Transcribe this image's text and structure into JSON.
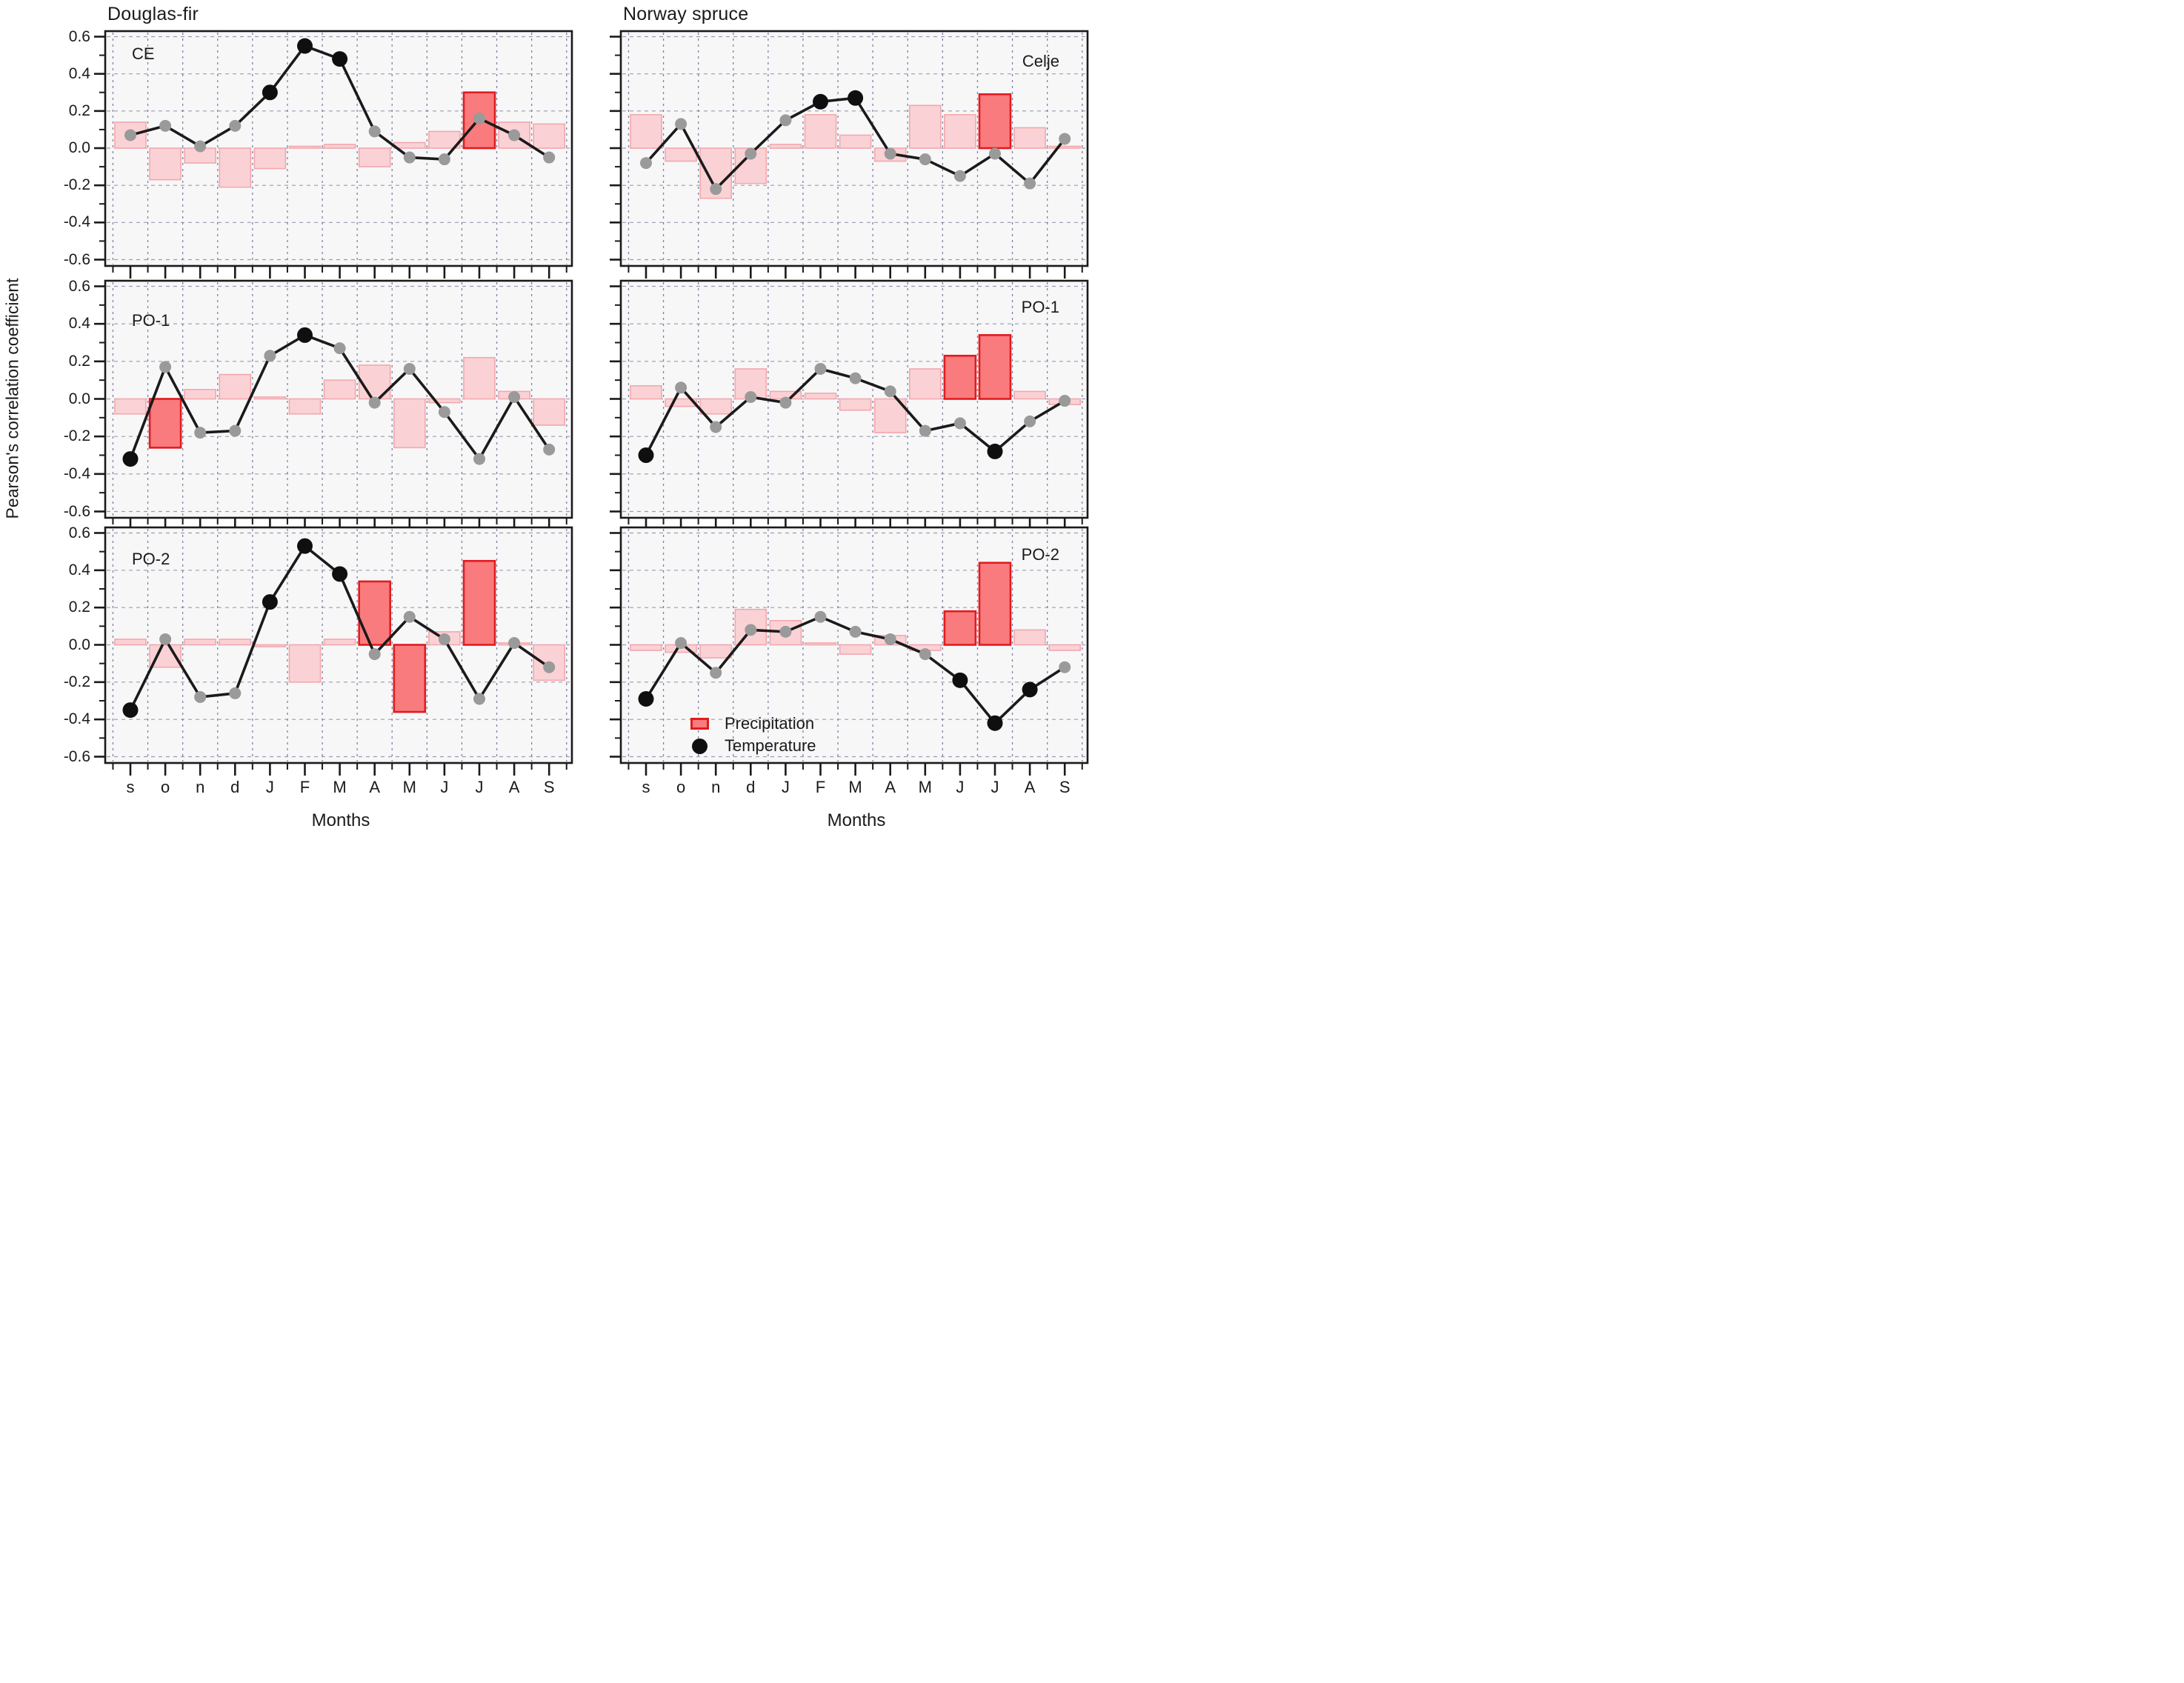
{
  "titles": {
    "left_column": "Douglas-fir",
    "right_column": "Norway spruce"
  },
  "legend": {
    "precipitation_label": "Precipitation",
    "temperature_label": "Temperature"
  },
  "colors": {
    "bar_fill": "#fad2d5",
    "bar_stroke": "#f3a8ad",
    "bar_significant_fill": "#f97b7d",
    "bar_significant_stroke": "#e11b1f",
    "dot_nonsignificant": "#9a9a9a",
    "dot_significant": "#0f0f0f",
    "line": "#1a1a1a",
    "grid_horizontal": "#9b9bb4",
    "grid_vertical": "#8181a0",
    "panel_background": "#f7f7f8",
    "panel_border": "#1a1a1a",
    "text": "#1a1a1a"
  },
  "chart_data": {
    "type": "bar",
    "subtype": "small-multiples bar + line (monthly climate-growth correlations)",
    "ylabel": "Pearson's correlation coefficient",
    "xlabel": "Months",
    "months": [
      "s",
      "o",
      "n",
      "d",
      "J",
      "F",
      "M",
      "A",
      "M",
      "J",
      "J",
      "A",
      "S"
    ],
    "ylim": [
      -0.65,
      0.65
    ],
    "yticks": [
      0.6,
      0.4,
      0.2,
      0.0,
      -0.2,
      -0.4,
      -0.6
    ],
    "ytick_labels": [
      "0.6",
      "0.4",
      "0.2",
      "0.0",
      "-0.2",
      "-0.4",
      "-0.6"
    ],
    "grid": "dashed, at 0.2 intervals and month boundaries",
    "legend_position": "inside bottom-right panel",
    "series_legend": [
      {
        "name": "Precipitation",
        "type": "bar"
      },
      {
        "name": "Temperature",
        "type": "line"
      }
    ],
    "significance_encoding": "saturated red bars / black dots are significant; pale pink bars / gray dots are not",
    "panels": [
      {
        "species": "Douglas-fir",
        "site": "CE",
        "site_label_corner": "left",
        "col": 0,
        "row": 0,
        "precipitation": [
          0.14,
          -0.17,
          -0.08,
          -0.21,
          -0.11,
          0.01,
          0.02,
          -0.1,
          0.03,
          0.09,
          0.3,
          0.14,
          0.13
        ],
        "precipitation_significant": [
          false,
          false,
          false,
          false,
          false,
          false,
          false,
          false,
          false,
          false,
          true,
          false,
          false
        ],
        "temperature": [
          0.07,
          0.12,
          0.01,
          0.12,
          0.3,
          0.55,
          0.48,
          0.09,
          -0.05,
          -0.06,
          0.16,
          0.07,
          -0.05
        ],
        "temperature_significant": [
          false,
          false,
          false,
          false,
          true,
          true,
          true,
          false,
          false,
          false,
          false,
          false,
          false
        ]
      },
      {
        "species": "Norway spruce",
        "site": "Celje",
        "site_label_corner": "right",
        "col": 1,
        "row": 0,
        "precipitation": [
          0.18,
          -0.07,
          -0.27,
          -0.19,
          0.02,
          0.18,
          0.07,
          -0.07,
          0.23,
          0.18,
          0.29,
          0.11,
          0.01
        ],
        "precipitation_significant": [
          false,
          false,
          false,
          false,
          false,
          false,
          false,
          false,
          false,
          false,
          true,
          false,
          false
        ],
        "temperature": [
          -0.08,
          0.13,
          -0.22,
          -0.03,
          0.15,
          0.25,
          0.27,
          -0.03,
          -0.06,
          -0.15,
          -0.03,
          -0.19,
          0.05
        ],
        "temperature_significant": [
          false,
          false,
          false,
          false,
          false,
          true,
          true,
          false,
          false,
          false,
          false,
          false,
          false
        ]
      },
      {
        "species": "Douglas-fir",
        "site": "PO-1",
        "site_label_corner": "left",
        "col": 0,
        "row": 1,
        "precipitation": [
          -0.08,
          -0.26,
          0.05,
          0.13,
          0.01,
          -0.08,
          0.1,
          0.18,
          -0.26,
          -0.02,
          0.22,
          0.04,
          -0.14
        ],
        "precipitation_significant": [
          false,
          true,
          false,
          false,
          false,
          false,
          false,
          false,
          false,
          false,
          false,
          false,
          false
        ],
        "temperature": [
          -0.32,
          0.17,
          -0.18,
          -0.17,
          0.23,
          0.34,
          0.27,
          -0.02,
          0.16,
          -0.07,
          -0.32,
          0.01,
          -0.27
        ],
        "temperature_significant": [
          true,
          false,
          false,
          false,
          false,
          true,
          false,
          false,
          false,
          false,
          false,
          false,
          false
        ]
      },
      {
        "species": "Norway spruce",
        "site": "PO-1",
        "site_label_corner": "right",
        "col": 1,
        "row": 1,
        "precipitation": [
          0.07,
          -0.04,
          -0.08,
          0.16,
          0.04,
          0.03,
          -0.06,
          -0.18,
          0.16,
          0.23,
          0.34,
          0.04,
          -0.03
        ],
        "precipitation_significant": [
          false,
          false,
          false,
          false,
          false,
          false,
          false,
          false,
          false,
          true,
          true,
          false,
          false
        ],
        "temperature": [
          -0.3,
          0.06,
          -0.15,
          0.01,
          -0.02,
          0.16,
          0.11,
          0.04,
          -0.17,
          -0.13,
          -0.28,
          -0.12,
          -0.01
        ],
        "temperature_significant": [
          true,
          false,
          false,
          false,
          false,
          false,
          false,
          false,
          false,
          false,
          true,
          false,
          false
        ]
      },
      {
        "species": "Douglas-fir",
        "site": "PO-2",
        "site_label_corner": "left",
        "col": 0,
        "row": 2,
        "precipitation": [
          0.03,
          -0.12,
          0.03,
          0.03,
          -0.01,
          -0.2,
          0.03,
          0.34,
          -0.36,
          0.07,
          0.45,
          0.01,
          -0.19
        ],
        "precipitation_significant": [
          false,
          false,
          false,
          false,
          false,
          false,
          false,
          true,
          true,
          false,
          true,
          false,
          false
        ],
        "temperature": [
          -0.35,
          0.03,
          -0.28,
          -0.26,
          0.23,
          0.53,
          0.38,
          -0.05,
          0.15,
          0.03,
          -0.29,
          0.01,
          -0.12
        ],
        "temperature_significant": [
          true,
          false,
          false,
          false,
          true,
          true,
          true,
          false,
          false,
          false,
          false,
          false,
          false
        ]
      },
      {
        "species": "Norway spruce",
        "site": "PO-2",
        "site_label_corner": "right",
        "col": 1,
        "row": 2,
        "precipitation": [
          -0.03,
          -0.04,
          -0.07,
          0.19,
          0.13,
          0.01,
          -0.05,
          0.05,
          -0.03,
          0.18,
          0.44,
          0.08,
          -0.03
        ],
        "precipitation_significant": [
          false,
          false,
          false,
          false,
          false,
          false,
          false,
          false,
          false,
          true,
          true,
          false,
          false
        ],
        "temperature": [
          -0.29,
          0.01,
          -0.15,
          0.08,
          0.07,
          0.15,
          0.07,
          0.03,
          -0.05,
          -0.19,
          -0.42,
          -0.24,
          -0.12
        ],
        "temperature_significant": [
          true,
          false,
          false,
          false,
          false,
          false,
          false,
          false,
          false,
          true,
          true,
          true,
          false
        ]
      }
    ]
  }
}
